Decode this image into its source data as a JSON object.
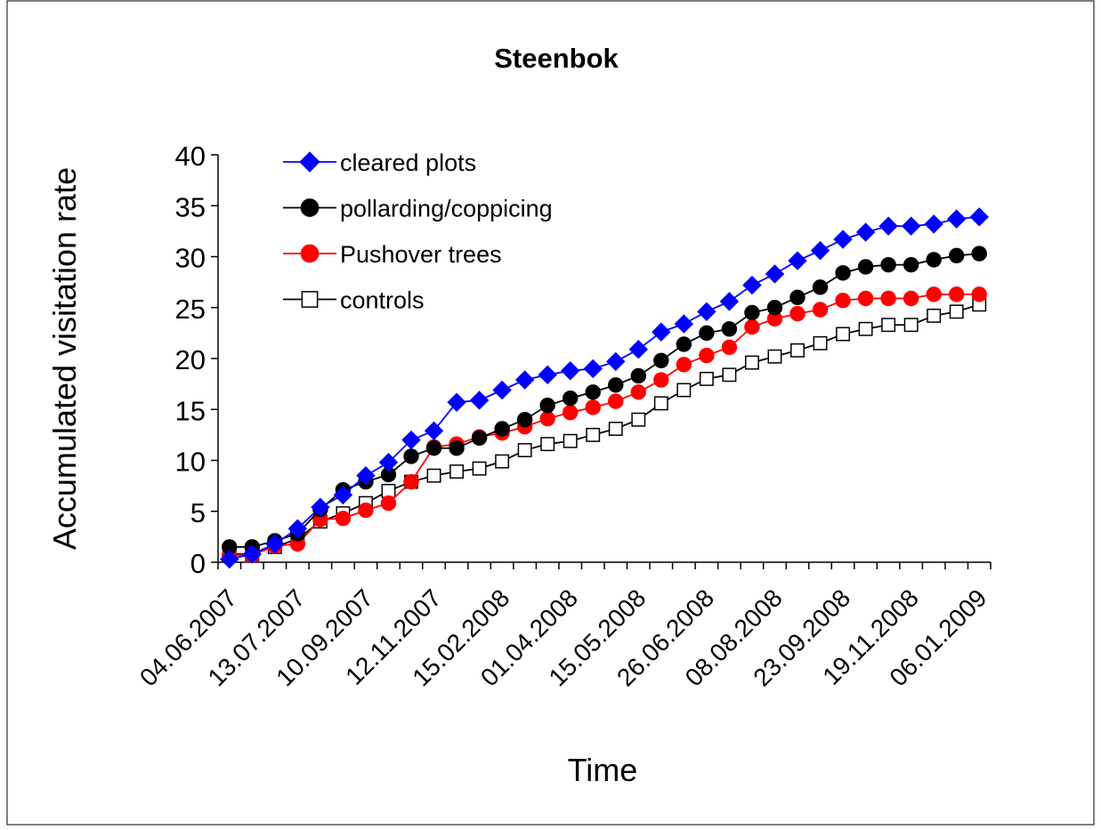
{
  "chart_data": {
    "type": "line",
    "title": "Steenbok",
    "xlabel": "Time",
    "ylabel": "Accumulated visitation rate",
    "ylim": [
      0,
      40
    ],
    "yticks": [
      "0",
      "5",
      "10",
      "15",
      "20",
      "25",
      "30",
      "35",
      "40"
    ],
    "x_tick_labels": [
      "04.06.2007",
      "13.07.2007",
      "10.09.2007",
      "12.11.2007",
      "15.02.2008",
      "01.04.2008",
      "15.05.2008",
      "26.06.2008",
      "08.08.2008",
      "23.09.2008",
      "19.11.2008",
      "06.01.2009"
    ],
    "point_count": 34,
    "grid": false,
    "legend_position": "top-left",
    "series": [
      {
        "name": "cleared plots",
        "color": "#0000ff",
        "marker": "diamond",
        "values": [
          0.3,
          0.8,
          1.8,
          3.3,
          5.4,
          6.6,
          8.5,
          9.8,
          12.0,
          12.9,
          15.7,
          15.9,
          16.9,
          17.9,
          18.4,
          18.8,
          19.0,
          19.7,
          20.9,
          22.6,
          23.4,
          24.6,
          25.6,
          27.2,
          28.3,
          29.6,
          30.6,
          31.7,
          32.4,
          33.0,
          33.0,
          33.2,
          33.7,
          33.9
        ]
      },
      {
        "name": "pollarding/coppicing",
        "color": "#000000",
        "marker": "circle",
        "values": [
          1.5,
          1.5,
          2.1,
          2.8,
          5.2,
          7.1,
          7.9,
          8.6,
          10.4,
          11.2,
          11.2,
          12.2,
          13.1,
          14.0,
          15.4,
          16.1,
          16.7,
          17.4,
          18.3,
          19.8,
          21.4,
          22.5,
          22.9,
          24.5,
          25.0,
          26.0,
          27.0,
          28.4,
          29.0,
          29.2,
          29.2,
          29.7,
          30.1,
          30.3
        ]
      },
      {
        "name": "Pushover trees",
        "color": "#ff0000",
        "marker": "circle",
        "values": [
          0.7,
          0.7,
          1.6,
          1.8,
          4.2,
          4.3,
          5.1,
          5.8,
          7.9,
          11.3,
          11.6,
          12.3,
          12.7,
          13.3,
          14.1,
          14.7,
          15.2,
          15.8,
          16.7,
          17.9,
          19.4,
          20.3,
          21.1,
          23.1,
          23.9,
          24.4,
          24.8,
          25.7,
          25.9,
          25.9,
          25.9,
          26.3,
          26.3,
          26.3
        ]
      },
      {
        "name": "controls",
        "color": "#000000",
        "marker": "square-open",
        "values": [
          0.8,
          0.8,
          1.5,
          2.3,
          4.0,
          4.8,
          5.8,
          7.0,
          7.9,
          8.5,
          8.9,
          9.2,
          9.9,
          11.0,
          11.6,
          11.9,
          12.5,
          13.1,
          14.0,
          15.6,
          16.9,
          18.0,
          18.4,
          19.6,
          20.2,
          20.8,
          21.5,
          22.4,
          22.9,
          23.3,
          23.3,
          24.2,
          24.6,
          25.3
        ]
      }
    ]
  }
}
